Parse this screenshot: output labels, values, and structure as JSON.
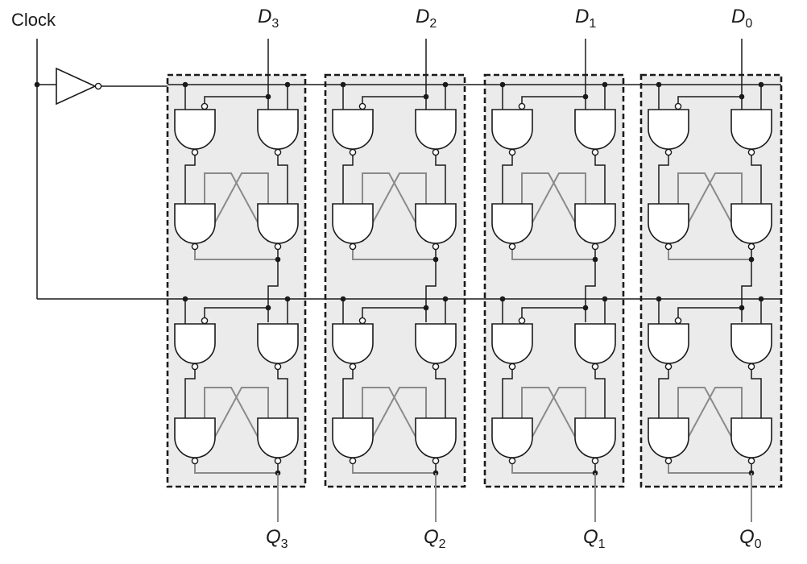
{
  "clock_label": "Clock",
  "bits": [
    {
      "d_main": "D",
      "d_sub": "3",
      "q_main": "Q",
      "q_sub": "3"
    },
    {
      "d_main": "D",
      "d_sub": "2",
      "q_main": "Q",
      "q_sub": "2"
    },
    {
      "d_main": "D",
      "d_sub": "1",
      "q_main": "Q",
      "q_sub": "1"
    },
    {
      "d_main": "D",
      "d_sub": "0",
      "q_main": "Q",
      "q_sub": "0"
    }
  ]
}
